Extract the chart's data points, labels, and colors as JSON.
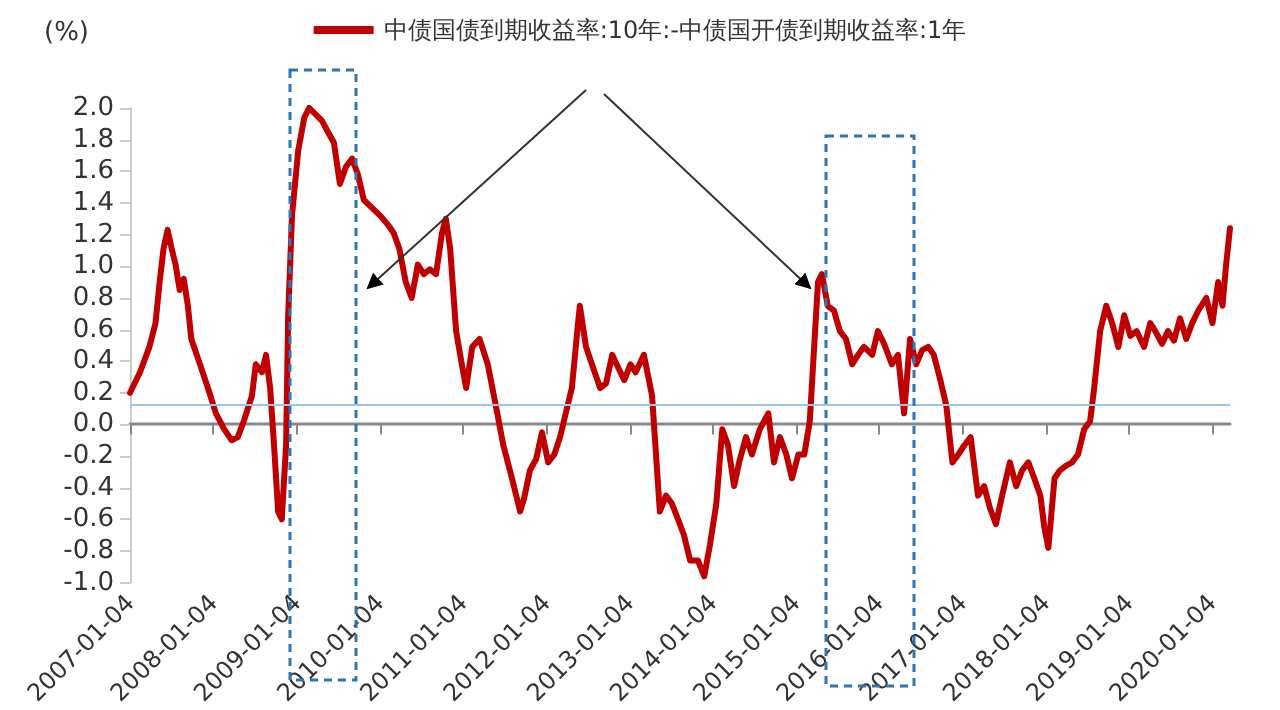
{
  "chart_data": {
    "type": "line",
    "ylabel": "(%)",
    "legend": "top",
    "marker": "none",
    "line_style": "solid",
    "xlim": [
      "2007-01-04",
      "2020-03-23"
    ],
    "ylim": [
      -1.0,
      2.0
    ],
    "xticks": [
      "2007-01-04",
      "2008-01-04",
      "2009-01-04",
      "2010-01-04",
      "2011-01-04",
      "2012-01-04",
      "2013-01-04",
      "2014-01-04",
      "2015-01-04",
      "2016-01-04",
      "2017-01-04",
      "2018-01-04",
      "2019-01-04",
      "2020-01-04"
    ],
    "yticks": [
      {
        "value": -1.0,
        "label": "-1.0"
      },
      {
        "value": -0.8,
        "label": "-0.8"
      },
      {
        "value": -0.6,
        "label": "-0.6"
      },
      {
        "value": -0.4,
        "label": "-0.4"
      },
      {
        "value": -0.2,
        "label": "-0.2"
      },
      {
        "value": 0,
        "label": "0.0"
      },
      {
        "value": 0.2,
        "label": "0.2"
      },
      {
        "value": 0.4,
        "label": "0.4"
      },
      {
        "value": 0.6,
        "label": "0.6"
      },
      {
        "value": 0.8,
        "label": "0.8"
      },
      {
        "value": 1.0,
        "label": "1.0"
      },
      {
        "value": 1.2,
        "label": "1.2"
      },
      {
        "value": 1.4,
        "label": "1.4"
      },
      {
        "value": 1.6,
        "label": "1.6"
      },
      {
        "value": 1.8,
        "label": "1.8"
      },
      {
        "value": 2.0,
        "label": "2.0"
      }
    ],
    "ref_lines": [
      {
        "axis": "y",
        "value": 0.13,
        "color": "#9dc3e6"
      }
    ],
    "series": [
      {
        "name": "中债国债到期收益率:10年:-中债国开债到期收益率:1年",
        "color": "#c00000",
        "x": [
          "2007-01-04",
          "2007-02-17",
          "2007-03-30",
          "2007-04-26",
          "2007-05-14",
          "2007-05-31",
          "2007-06-18",
          "2007-07-06",
          "2007-07-23",
          "2007-08-10",
          "2007-08-28",
          "2007-09-15",
          "2007-09-30",
          "2007-11-07",
          "2007-12-12",
          "2008-01-16",
          "2008-02-21",
          "2008-03-25",
          "2008-04-21",
          "2008-05-17",
          "2008-06-22",
          "2008-07-09",
          "2008-08-05",
          "2008-08-23",
          "2008-09-10",
          "2008-09-27",
          "2008-10-15",
          "2008-10-31",
          "2008-11-19",
          "2008-11-28",
          "2008-12-15",
          "2009-01-11",
          "2009-02-07",
          "2009-02-28",
          "2009-03-29",
          "2009-04-25",
          "2009-05-21",
          "2009-06-17",
          "2009-07-13",
          "2009-08-09",
          "2009-09-05",
          "2009-09-30",
          "2009-10-26",
          "2009-11-30",
          "2010-01-06",
          "2010-02-10",
          "2010-03-06",
          "2010-03-31",
          "2010-04-28",
          "2010-05-24",
          "2010-06-20",
          "2010-07-16",
          "2010-08-12",
          "2010-09-08",
          "2010-10-04",
          "2010-10-21",
          "2010-11-09",
          "2010-12-05",
          "2010-12-30",
          "2011-01-18",
          "2011-02-14",
          "2011-03-18",
          "2011-04-23",
          "2011-05-28",
          "2011-06-30",
          "2011-08-07",
          "2011-09-12",
          "2011-09-29",
          "2011-10-25",
          "2011-11-21",
          "2011-12-17",
          "2012-01-13",
          "2012-02-09",
          "2012-03-05",
          "2012-03-30",
          "2012-04-26",
          "2012-05-23",
          "2012-05-31",
          "2012-06-27",
          "2012-07-23",
          "2012-08-28",
          "2012-09-23",
          "2012-10-20",
          "2012-11-15",
          "2012-12-12",
          "2013-01-08",
          "2013-01-31",
          "2013-03-08",
          "2013-04-13",
          "2013-05-17",
          "2013-06-13",
          "2013-07-09",
          "2013-08-05",
          "2013-08-31",
          "2013-09-27",
          "2013-10-31",
          "2013-11-28",
          "2013-12-23",
          "2014-01-20",
          "2014-02-15",
          "2014-03-12",
          "2014-04-08",
          "2014-04-30",
          "2014-05-30",
          "2014-06-25",
          "2014-07-30",
          "2014-09-05",
          "2014-09-30",
          "2014-10-26",
          "2014-11-23",
          "2014-12-18",
          "2015-01-15",
          "2015-02-10",
          "2015-03-06",
          "2015-04-11",
          "2015-04-28",
          "2015-05-24",
          "2015-06-20",
          "2015-07-16",
          "2015-08-12",
          "2015-09-08",
          "2015-10-04",
          "2015-10-30",
          "2015-12-05",
          "2015-12-30",
          "2016-01-26",
          "2016-02-29",
          "2016-03-27",
          "2016-04-23",
          "2016-05-19",
          "2016-06-15",
          "2016-07-11",
          "2016-08-07",
          "2016-08-31",
          "2016-09-29",
          "2016-10-25",
          "2016-11-21",
          "2016-12-17",
          "2017-01-13",
          "2017-02-09",
          "2017-03-13",
          "2017-04-09",
          "2017-05-05",
          "2017-05-31",
          "2017-06-27",
          "2017-07-31",
          "2017-08-28",
          "2017-09-23",
          "2017-10-20",
          "2017-11-15",
          "2017-12-12",
          "2017-12-29",
          "2018-01-16",
          "2018-02-12",
          "2018-03-08",
          "2018-04-04",
          "2018-04-30",
          "2018-05-26",
          "2018-06-22",
          "2018-07-18",
          "2018-08-05",
          "2018-08-31",
          "2018-09-27",
          "2018-10-23",
          "2018-11-19",
          "2018-12-15",
          "2019-01-11",
          "2019-02-07",
          "2019-03-12",
          "2019-04-08",
          "2019-04-30",
          "2019-05-30",
          "2019-06-25",
          "2019-07-21",
          "2019-08-17",
          "2019-09-13",
          "2019-10-09",
          "2019-11-05",
          "2019-12-10",
          "2020-01-06",
          "2020-01-31",
          "2020-02-19",
          "2020-03-06",
          "2020-03-23"
        ],
        "values": [
          0.2,
          0.33,
          0.49,
          0.64,
          0.9,
          1.11,
          1.23,
          1.11,
          1.01,
          0.85,
          0.92,
          0.75,
          0.54,
          0.38,
          0.23,
          0.07,
          -0.03,
          -0.1,
          -0.08,
          0.02,
          0.18,
          0.38,
          0.33,
          0.44,
          0.23,
          -0.13,
          -0.55,
          -0.6,
          -0.13,
          0.69,
          1.32,
          1.73,
          1.94,
          2.0,
          1.96,
          1.92,
          1.85,
          1.78,
          1.52,
          1.63,
          1.68,
          1.58,
          1.42,
          1.37,
          1.32,
          1.26,
          1.21,
          1.11,
          0.9,
          0.8,
          1.01,
          0.95,
          0.98,
          0.95,
          1.21,
          1.3,
          1.11,
          0.59,
          0.38,
          0.23,
          0.49,
          0.54,
          0.38,
          0.12,
          -0.13,
          -0.34,
          -0.55,
          -0.47,
          -0.29,
          -0.22,
          -0.05,
          -0.24,
          -0.19,
          -0.08,
          0.07,
          0.23,
          0.64,
          0.75,
          0.49,
          0.38,
          0.23,
          0.26,
          0.44,
          0.36,
          0.28,
          0.38,
          0.33,
          0.44,
          0.18,
          -0.55,
          -0.45,
          -0.5,
          -0.6,
          -0.7,
          -0.86,
          -0.86,
          -0.96,
          -0.76,
          -0.5,
          -0.03,
          -0.13,
          -0.39,
          -0.24,
          -0.08,
          -0.19,
          -0.03,
          0.07,
          -0.24,
          -0.08,
          -0.19,
          -0.34,
          -0.19,
          -0.19,
          0.02,
          0.9,
          0.95,
          0.75,
          0.72,
          0.59,
          0.54,
          0.38,
          0.44,
          0.49,
          0.44,
          0.59,
          0.51,
          0.38,
          0.44,
          0.07,
          0.54,
          0.38,
          0.47,
          0.49,
          0.44,
          0.28,
          0.12,
          -0.24,
          -0.19,
          -0.13,
          -0.08,
          -0.45,
          -0.39,
          -0.53,
          -0.63,
          -0.45,
          -0.24,
          -0.39,
          -0.29,
          -0.24,
          -0.34,
          -0.45,
          -0.65,
          -0.78,
          -0.34,
          -0.29,
          -0.26,
          -0.24,
          -0.19,
          -0.03,
          0.02,
          0.23,
          0.59,
          0.75,
          0.64,
          0.49,
          0.69,
          0.56,
          0.59,
          0.49,
          0.64,
          0.59,
          0.51,
          0.59,
          0.53,
          0.67,
          0.54,
          0.64,
          0.72,
          0.8,
          0.64,
          0.9,
          0.75,
          1.01,
          1.24
        ]
      }
    ]
  }
}
